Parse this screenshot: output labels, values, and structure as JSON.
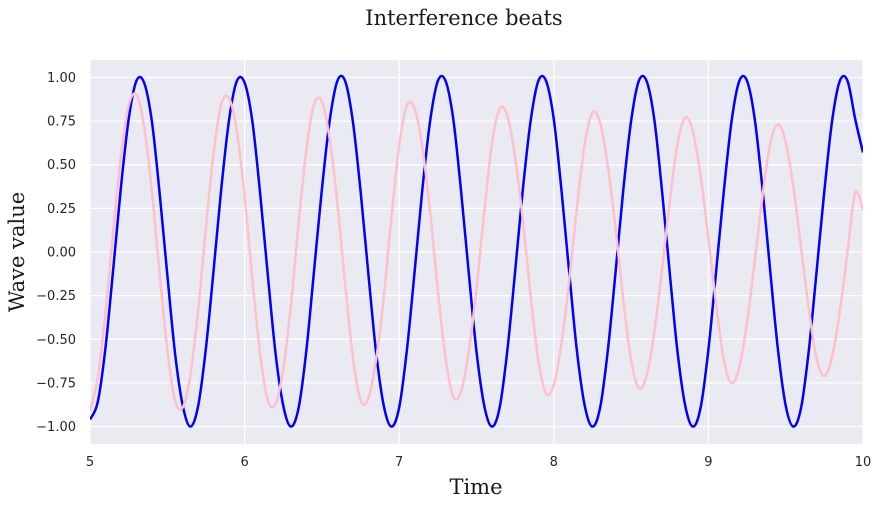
{
  "chart_data": {
    "type": "line",
    "title": "Interference beats",
    "xlabel": "Time",
    "ylabel": "Wave value",
    "xlim": [
      5,
      10
    ],
    "ylim": [
      -1.1,
      1.1
    ],
    "x_ticks": [
      5,
      6,
      7,
      8,
      9,
      10
    ],
    "x_tick_labels": [
      "5",
      "6",
      "7",
      "8",
      "9",
      "10"
    ],
    "y_ticks": [
      1.0,
      0.75,
      0.5,
      0.25,
      0.0,
      -0.25,
      -0.5,
      -0.75,
      -1.0
    ],
    "y_tick_labels": [
      "1.00",
      "0.75",
      "0.50",
      "0.25",
      "0.00",
      "−0.25",
      "−0.50",
      "−0.75",
      "−1.00"
    ],
    "grid": true,
    "legend": "none",
    "plot_background": "#eaeaf2",
    "grid_color": "#ffffff",
    "series": [
      {
        "color": "#0000ff",
        "x": [
          5.0,
          5.05,
          5.1,
          5.15,
          5.2,
          5.25,
          5.3,
          5.35,
          5.4,
          5.45,
          5.5,
          5.55,
          5.6,
          5.65,
          5.7,
          5.75,
          5.8,
          5.85,
          5.9,
          5.95,
          6.0,
          6.05,
          6.1,
          6.15,
          6.2,
          6.25,
          6.3,
          6.35,
          6.4,
          6.45,
          6.5,
          6.55,
          6.6,
          6.65,
          6.7,
          6.75,
          6.8,
          6.85,
          6.9,
          6.95,
          7.0,
          7.05,
          7.1,
          7.15,
          7.2,
          7.25,
          7.3,
          7.35,
          7.4,
          7.45,
          7.5,
          7.55,
          7.6,
          7.65,
          7.7,
          7.75,
          7.8,
          7.85,
          7.9,
          7.95,
          8.0,
          8.05,
          8.1,
          8.15,
          8.2,
          8.25,
          8.3,
          8.35,
          8.4,
          8.45,
          8.5,
          8.55,
          8.6,
          8.65,
          8.7,
          8.75,
          8.8,
          8.85,
          8.9,
          8.95,
          9.0,
          9.05,
          9.1,
          9.15,
          9.2,
          9.25,
          9.3,
          9.35,
          9.4,
          9.45,
          9.5,
          9.55,
          9.6,
          9.65,
          9.7,
          9.75,
          9.8,
          9.85,
          9.9,
          9.95,
          10.0
        ],
        "y": [
          -0.96,
          -0.86,
          -0.55,
          -0.1,
          0.37,
          0.76,
          0.98,
          0.97,
          0.75,
          0.34,
          -0.13,
          -0.58,
          -0.88,
          -1.0,
          -0.88,
          -0.55,
          -0.1,
          0.37,
          0.76,
          0.98,
          0.97,
          0.75,
          0.34,
          -0.13,
          -0.58,
          -0.88,
          -1.0,
          -0.89,
          -0.56,
          -0.1,
          0.36,
          0.75,
          0.98,
          0.98,
          0.75,
          0.35,
          -0.12,
          -0.57,
          -0.88,
          -1.0,
          -0.89,
          -0.56,
          -0.11,
          0.36,
          0.75,
          0.98,
          0.98,
          0.76,
          0.35,
          -0.12,
          -0.57,
          -0.88,
          -1.0,
          -0.89,
          -0.56,
          -0.11,
          0.36,
          0.75,
          0.98,
          0.98,
          0.76,
          0.35,
          -0.12,
          -0.57,
          -0.88,
          -1.0,
          -0.89,
          -0.56,
          -0.11,
          0.36,
          0.75,
          0.98,
          0.98,
          0.76,
          0.35,
          -0.12,
          -0.57,
          -0.88,
          -1.0,
          -0.89,
          -0.56,
          -0.11,
          0.35,
          0.75,
          0.98,
          0.98,
          0.76,
          0.36,
          -0.11,
          -0.56,
          -0.88,
          -1.0,
          -0.89,
          -0.56,
          -0.11,
          0.35,
          0.75,
          0.98,
          0.98,
          0.76,
          0.57
        ]
      },
      {
        "color": "#ffc0cb",
        "x": [
          5.0,
          5.05,
          5.1,
          5.15,
          5.2,
          5.25,
          5.3,
          5.35,
          5.4,
          5.45,
          5.5,
          5.55,
          5.6,
          5.65,
          5.7,
          5.75,
          5.8,
          5.85,
          5.9,
          5.95,
          6.0,
          6.05,
          6.1,
          6.15,
          6.2,
          6.25,
          6.3,
          6.35,
          6.4,
          6.45,
          6.5,
          6.55,
          6.6,
          6.65,
          6.7,
          6.75,
          6.8,
          6.85,
          6.9,
          6.95,
          7.0,
          7.05,
          7.1,
          7.15,
          7.2,
          7.25,
          7.3,
          7.35,
          7.4,
          7.45,
          7.5,
          7.55,
          7.6,
          7.65,
          7.7,
          7.75,
          7.8,
          7.85,
          7.9,
          7.95,
          8.0,
          8.05,
          8.1,
          8.15,
          8.2,
          8.25,
          8.3,
          8.35,
          8.4,
          8.45,
          8.5,
          8.55,
          8.6,
          8.65,
          8.7,
          8.75,
          8.8,
          8.85,
          8.9,
          8.95,
          9.0,
          9.05,
          9.1,
          9.15,
          9.2,
          9.25,
          9.3,
          9.35,
          9.4,
          9.45,
          9.5,
          9.55,
          9.6,
          9.65,
          9.7,
          9.75,
          9.8,
          9.85,
          9.9,
          9.95,
          10.0
        ],
        "y": [
          -0.91,
          -0.72,
          -0.35,
          0.12,
          0.55,
          0.84,
          0.9,
          0.72,
          0.35,
          -0.12,
          -0.56,
          -0.85,
          -0.89,
          -0.7,
          -0.33,
          0.14,
          0.57,
          0.85,
          0.88,
          0.69,
          0.32,
          -0.15,
          -0.58,
          -0.85,
          -0.87,
          -0.67,
          -0.3,
          0.17,
          0.59,
          0.85,
          0.86,
          0.65,
          0.28,
          -0.18,
          -0.6,
          -0.85,
          -0.84,
          -0.62,
          -0.26,
          0.2,
          0.61,
          0.84,
          0.82,
          0.6,
          0.23,
          -0.22,
          -0.61,
          -0.83,
          -0.8,
          -0.57,
          -0.21,
          0.23,
          0.62,
          0.82,
          0.78,
          0.54,
          0.18,
          -0.25,
          -0.62,
          -0.81,
          -0.76,
          -0.52,
          -0.16,
          0.26,
          0.62,
          0.8,
          0.74,
          0.49,
          0.13,
          -0.28,
          -0.62,
          -0.78,
          -0.71,
          -0.46,
          -0.1,
          0.29,
          0.62,
          0.77,
          0.69,
          0.43,
          0.08,
          -0.3,
          -0.62,
          -0.75,
          -0.66,
          -0.4,
          -0.05,
          0.32,
          0.62,
          0.73,
          0.63,
          0.37,
          0.02,
          -0.33,
          -0.61,
          -0.71,
          -0.6,
          -0.34,
          0.0,
          0.34,
          0.24
        ]
      }
    ]
  }
}
